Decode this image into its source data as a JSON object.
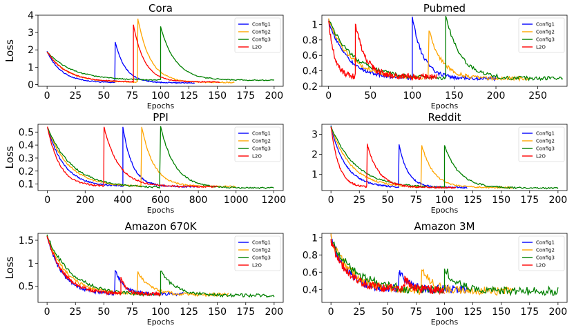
{
  "chart_data": [
    {
      "type": "line",
      "title": "Cora",
      "xlabel": "Epochs",
      "ylabel": "Loss",
      "xlim": [
        -8,
        208
      ],
      "ylim": [
        -0.1,
        4.0
      ],
      "xticks": [
        0,
        25,
        50,
        75,
        100,
        125,
        150,
        175,
        200
      ],
      "yticks": [
        0,
        1,
        2,
        3,
        4
      ],
      "legend": "top-right",
      "series": [
        {
          "name": "Config1",
          "color": "#0000ff",
          "end": 130,
          "restart": 60,
          "peak": 2.45,
          "start": 1.9,
          "floor": 0.1,
          "noise": 0.03
        },
        {
          "name": "Config2",
          "color": "#ffa500",
          "end": 165,
          "restart": 80,
          "peak": 3.8,
          "start": 1.9,
          "floor": 0.12,
          "noise": 0.03
        },
        {
          "name": "Config3",
          "color": "#008000",
          "end": 200,
          "restart": 100,
          "peak": 3.35,
          "start": 1.9,
          "floor": 0.25,
          "noise": 0.03
        },
        {
          "name": "L2O",
          "color": "#ff0000",
          "end": 152,
          "restart": 76,
          "peak": 3.45,
          "start": 1.9,
          "floor": 0.15,
          "noise": 0.03
        }
      ]
    },
    {
      "type": "line",
      "title": "Pubmed",
      "xlabel": "Epochs",
      "ylabel": "",
      "xlim": [
        -8,
        285
      ],
      "ylim": [
        0.2,
        1.12
      ],
      "xticks": [
        0,
        50,
        100,
        150,
        200,
        250
      ],
      "yticks": [
        0.2,
        0.4,
        0.6,
        0.8,
        1.0
      ],
      "legend": "top-right",
      "series": [
        {
          "name": "Config1",
          "color": "#0000ff",
          "end": 200,
          "restart": 100,
          "peak": 1.1,
          "start": 1.06,
          "floor": 0.3,
          "noise": 0.025
        },
        {
          "name": "Config2",
          "color": "#ffa500",
          "end": 240,
          "restart": 120,
          "peak": 0.92,
          "start": 1.06,
          "floor": 0.3,
          "noise": 0.025
        },
        {
          "name": "Config3",
          "color": "#008000",
          "end": 280,
          "restart": 140,
          "peak": 1.11,
          "start": 1.06,
          "floor": 0.3,
          "noise": 0.025
        },
        {
          "name": "L2O",
          "color": "#ff0000",
          "end": 130,
          "restart": 32,
          "peak": 1.0,
          "start": 1.06,
          "floor": 0.32,
          "noise": 0.04
        }
      ]
    },
    {
      "type": "line",
      "title": "PPI",
      "xlabel": "Epochs",
      "ylabel": "Loss",
      "xlim": [
        -50,
        1250
      ],
      "ylim": [
        0.05,
        0.56
      ],
      "xticks": [
        0,
        200,
        400,
        600,
        800,
        1000,
        1200
      ],
      "yticks": [
        0.1,
        0.2,
        0.3,
        0.4,
        0.5
      ],
      "legend": "top-right",
      "series": [
        {
          "name": "Config1",
          "color": "#0000ff",
          "end": 800,
          "restart": 400,
          "peak": 0.54,
          "start": 0.54,
          "floor": 0.08,
          "noise": 0.006
        },
        {
          "name": "Config2",
          "color": "#ffa500",
          "end": 1000,
          "restart": 500,
          "peak": 0.54,
          "start": 0.54,
          "floor": 0.08,
          "noise": 0.006
        },
        {
          "name": "Config3",
          "color": "#008000",
          "end": 1200,
          "restart": 600,
          "peak": 0.54,
          "start": 0.54,
          "floor": 0.07,
          "noise": 0.006
        },
        {
          "name": "L2O",
          "color": "#ff0000",
          "end": 900,
          "restart": 300,
          "peak": 0.54,
          "start": 0.54,
          "floor": 0.08,
          "noise": 0.006
        }
      ]
    },
    {
      "type": "line",
      "title": "Reddit",
      "xlabel": "Epochs",
      "ylabel": "",
      "xlim": [
        -8,
        208
      ],
      "ylim": [
        0.2,
        3.5
      ],
      "xticks": [
        0,
        25,
        50,
        75,
        100,
        125,
        150,
        175,
        200
      ],
      "yticks": [
        1,
        2,
        3
      ],
      "legend": "top-right",
      "series": [
        {
          "name": "Config1",
          "color": "#0000ff",
          "end": 120,
          "restart": 60,
          "peak": 2.5,
          "start": 3.4,
          "floor": 0.35,
          "noise": 0.04
        },
        {
          "name": "Config2",
          "color": "#ffa500",
          "end": 160,
          "restart": 80,
          "peak": 2.45,
          "start": 3.4,
          "floor": 0.35,
          "noise": 0.04
        },
        {
          "name": "Config3",
          "color": "#008000",
          "end": 200,
          "restart": 100,
          "peak": 2.45,
          "start": 3.4,
          "floor": 0.32,
          "noise": 0.04
        },
        {
          "name": "L2O",
          "color": "#ff0000",
          "end": 110,
          "restart": 32,
          "peak": 2.5,
          "start": 3.4,
          "floor": 0.35,
          "noise": 0.04
        }
      ]
    },
    {
      "type": "line",
      "title": "Amazon 670K",
      "xlabel": "Epochs",
      "ylabel": "Loss",
      "xlim": [
        -8,
        208
      ],
      "ylim": [
        0.15,
        1.65
      ],
      "xticks": [
        0,
        25,
        50,
        75,
        100,
        125,
        150,
        175,
        200
      ],
      "yticks": [
        0.5,
        1.0,
        1.5
      ],
      "legend": "top-right",
      "series": [
        {
          "name": "Config1",
          "color": "#0000ff",
          "end": 120,
          "restart": 60,
          "peak": 0.85,
          "start": 1.6,
          "floor": 0.33,
          "noise": 0.035
        },
        {
          "name": "Config2",
          "color": "#ffa500",
          "end": 160,
          "restart": 80,
          "peak": 0.82,
          "start": 1.6,
          "floor": 0.32,
          "noise": 0.035
        },
        {
          "name": "Config3",
          "color": "#008000",
          "end": 200,
          "restart": 100,
          "peak": 0.83,
          "start": 1.6,
          "floor": 0.3,
          "noise": 0.035
        },
        {
          "name": "L2O",
          "color": "#ff0000",
          "end": 100,
          "restart": 65,
          "peak": 0.7,
          "start": 1.6,
          "floor": 0.33,
          "noise": 0.035
        }
      ]
    },
    {
      "type": "line",
      "title": "Amazon 3M",
      "xlabel": "Epochs",
      "ylabel": "",
      "xlim": [
        -8,
        208
      ],
      "ylim": [
        0.25,
        1.05
      ],
      "xticks": [
        0,
        25,
        50,
        75,
        100,
        125,
        150,
        175,
        200
      ],
      "yticks": [
        0.4,
        0.6,
        0.8,
        1.0
      ],
      "legend": "top-right",
      "series": [
        {
          "name": "Config1",
          "color": "#0000ff",
          "end": 120,
          "restart": 60,
          "peak": 0.6,
          "start": 1.02,
          "floor": 0.4,
          "noise": 0.05
        },
        {
          "name": "Config2",
          "color": "#ffa500",
          "end": 160,
          "restart": 80,
          "peak": 0.63,
          "start": 1.0,
          "floor": 0.38,
          "noise": 0.05
        },
        {
          "name": "Config3",
          "color": "#008000",
          "end": 200,
          "restart": 100,
          "peak": 0.64,
          "start": 0.98,
          "floor": 0.38,
          "noise": 0.05
        },
        {
          "name": "L2O",
          "color": "#ff0000",
          "end": 100,
          "restart": 65,
          "peak": 0.55,
          "start": 0.96,
          "floor": 0.4,
          "noise": 0.05
        }
      ]
    }
  ]
}
